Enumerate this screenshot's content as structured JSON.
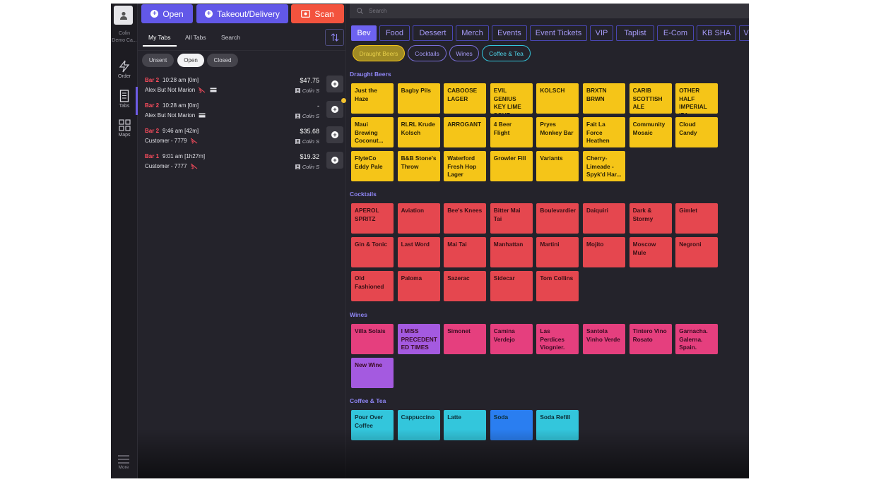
{
  "user": {
    "name_line1": "Colin",
    "name_line2": "Demo Ca..."
  },
  "rail": {
    "order": "Order",
    "tabs": "Tabs",
    "maps": "Maps",
    "more": "More"
  },
  "topbar": {
    "open": "Open",
    "takeout": "Takeout/Delivery",
    "scan": "Scan"
  },
  "subtabs": [
    "My Tabs",
    "All Tabs",
    "Search"
  ],
  "filters": [
    "Unsent",
    "Open",
    "Closed"
  ],
  "tab_list": [
    {
      "location": "Bar 2",
      "time": "10:28 am [0m]",
      "name": "Alex But Not Marion",
      "amount": "$47.75",
      "server": "Colin S"
    },
    {
      "location": "Bar 2",
      "time": "10:28 am [0m]",
      "name": "Alex But Not Marion",
      "amount": "-",
      "server": "Colin S"
    },
    {
      "location": "Bar 2",
      "time": "9:46 am [42m]",
      "name": "Customer - 7779",
      "amount": "$35.68",
      "server": "Colin S"
    },
    {
      "location": "Bar 1",
      "time": "9:01 am [1h27m]",
      "name": "Customer - 7777",
      "amount": "$19.32",
      "server": "Colin S"
    }
  ],
  "search": {
    "placeholder": "Search"
  },
  "categories": [
    "Bev",
    "Food",
    "Dessert",
    "Merch",
    "Events",
    "Event Tickets",
    "VIP",
    "Taplist",
    "E-Com",
    "KB SHA",
    "V"
  ],
  "subcategories": [
    "Draught Beers",
    "Cocktails",
    "Wines",
    "Coffee & Tea"
  ],
  "sections": {
    "draught": {
      "title": "Draught Beers",
      "color": "#f5c518",
      "items": [
        "Just the Haze",
        "Bagby Pils",
        "CABOOSE LAGER",
        "EVIL GENIUS KEY LIME SOUR",
        "KOLSCH",
        "BRXTN BRWN",
        "CARIB SCOTTISH ALE",
        "OTHER HALF IMPERIAL IPA",
        "Maui Brewing Coconut...",
        "RLRL Krude Kolsch",
        "ARROGANT",
        "4 Beer Flight",
        "Pryes Monkey Bar",
        "Fait La Force Heathen",
        "Community Mosaic",
        "Cloud Candy",
        "FlyteCo Eddy Pale",
        "B&B Stone's Throw",
        "Waterford Fresh Hop Lager",
        "Growler Fill",
        "Variants",
        "Cherry-Limeade - Spyk'd Har..."
      ]
    },
    "cocktails": {
      "title": "Cocktails",
      "color": "#e5474f",
      "items": [
        "APEROL SPRITZ",
        "Aviation",
        "Bee's Knees",
        "Bitter Mai Tai",
        "Boulevardier",
        "Daiquiri",
        "Dark & Stormy",
        "Gimlet",
        "Gin & Tonic",
        "Last Word",
        "Mai Tai",
        "Manhattan",
        "Martini",
        "Mojito",
        "Moscow Mule",
        "Negroni",
        "Old Fashioned",
        "Paloma",
        "Sazerac",
        "Sidecar",
        "Tom Collins"
      ]
    },
    "wines": {
      "title": "Wines",
      "color": "#e53f7e",
      "items": [
        "Villa Solais",
        "I MISS PRECEDENT ED TIMES",
        "Simonet",
        "Camina Verdejo",
        "Las Perdices Viognier.",
        "Santola Vinho Verde",
        "Tintero Vino Rosato",
        "Garnacha. Galerna. Spain.",
        "New Wine"
      ]
    },
    "coffee": {
      "title": "Coffee & Tea",
      "color": "#33c6dc",
      "items": [
        "Pour Over Coffee",
        "Cappuccino",
        "Latte",
        "Soda",
        "Soda Refill"
      ]
    }
  },
  "colors": {
    "purple_tile": "#a45ae0",
    "soda_tile": "#2a7ef0",
    "accent": "#6d62f0"
  }
}
